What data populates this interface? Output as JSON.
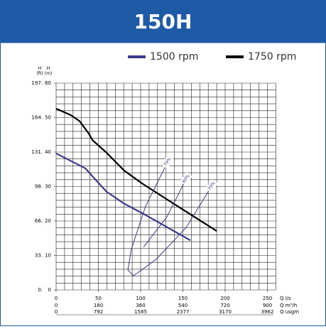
{
  "chart_data": {
    "type": "line",
    "title": "150H",
    "y_axis_labels": [
      "H\n(ft)",
      "H\n(m)"
    ],
    "ylim": [
      0,
      60
    ],
    "yticks": [
      0,
      10,
      20,
      30,
      40,
      50,
      60
    ],
    "yticks_ft": [
      "0.",
      "33.",
      "66.",
      "98.",
      "131.",
      "164.",
      "197."
    ],
    "xlim": [
      0,
      260
    ],
    "xticks": [
      0,
      50,
      100,
      150,
      200,
      250
    ],
    "x_rows": [
      {
        "unit": "Q l/s"
      },
      {
        "unit": "Q m³/h",
        "labels": [
          "0",
          "180",
          "360",
          "540",
          "720",
          "900"
        ]
      },
      {
        "unit": "Q usgm",
        "labels": [
          "0",
          "792",
          "1585",
          "2377",
          "3170",
          "3962"
        ]
      }
    ],
    "xgrid_step": 10,
    "ygrid_step": 2,
    "grid": true,
    "series": [
      {
        "name": "1500 rpm",
        "color": "#3a3a8c",
        "x": [
          0,
          34.5,
          42.9,
          59.7,
          80.7,
          101.7,
          158.8
        ],
        "y": [
          39.6,
          35.3,
          33,
          28.5,
          25,
          22.3,
          14.4
        ]
      },
      {
        "name": "1750 rpm",
        "color": "#000000",
        "x": [
          0,
          17.6,
          27.7,
          38.6,
          42.9,
          59.7,
          80.7,
          101.7,
          143.7,
          190
        ],
        "y": [
          52.6,
          50.7,
          49,
          45.4,
          43.5,
          39.8,
          34.6,
          30.9,
          24.3,
          17.1
        ]
      }
    ],
    "efficiency": [
      {
        "label": "79%",
        "x": [
          131.9,
          105.9,
          89.1,
          84.9,
          91.6
        ],
        "y": [
          37.1,
          24.3,
          11.9,
          5.8,
          4.1
        ]
      },
      {
        "label": "80%",
        "x": [
          153.8,
          131.1,
          103.4
        ],
        "y": [
          32.2,
          21.2,
          12.4
        ]
      },
      {
        "label": "79%",
        "x": [
          184,
          153.8,
          118.5,
          91.6
        ],
        "y": [
          30.1,
          18.1,
          8.9,
          4.1
        ]
      }
    ]
  }
}
